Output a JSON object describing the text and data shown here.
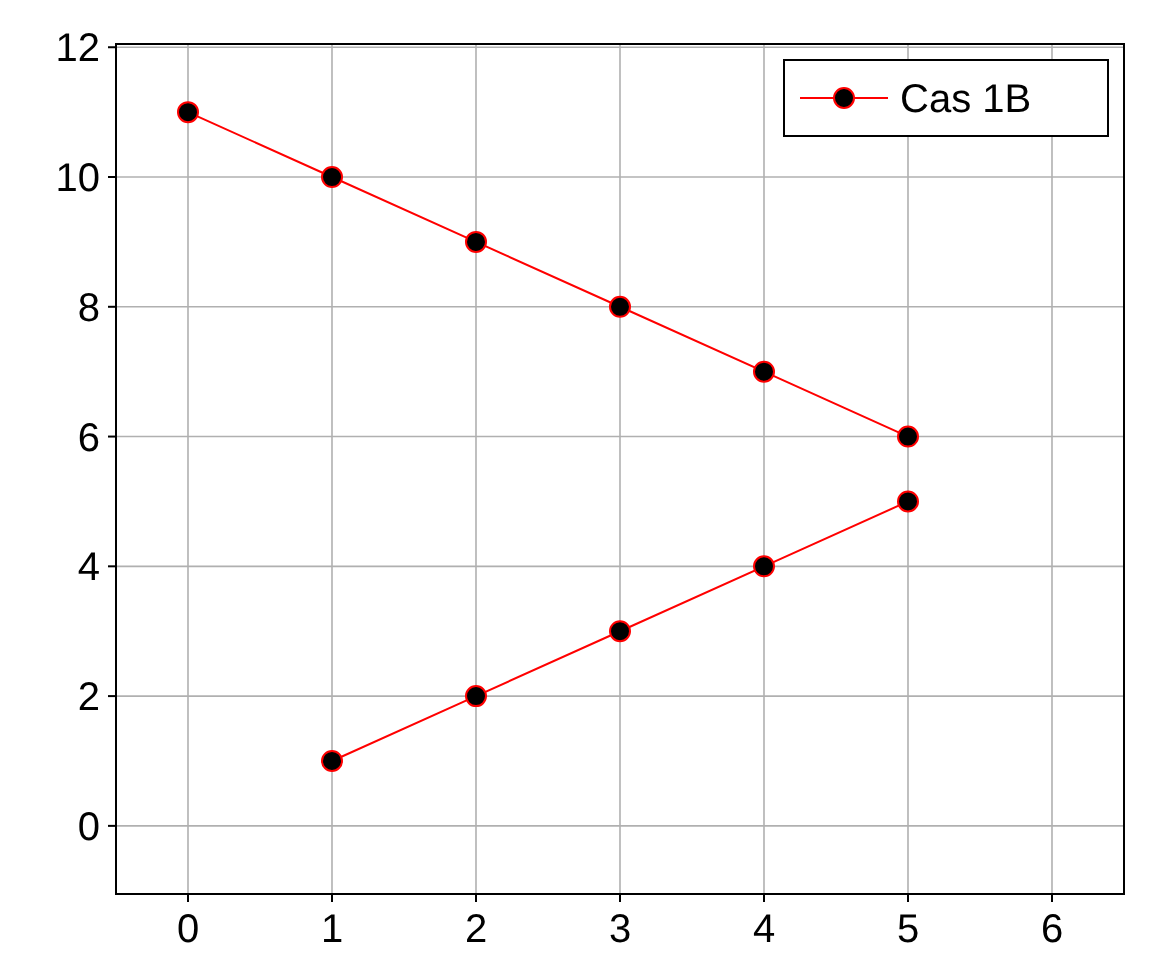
{
  "chart_data": {
    "type": "line",
    "x": [
      0,
      1,
      2,
      3,
      4,
      5
    ],
    "series": [
      {
        "name": "Cas 1B",
        "color": "#ff0000",
        "values": [
          11,
          10,
          9,
          8,
          7,
          6
        ]
      },
      {
        "color": "#ff0000",
        "x": [
          5,
          4,
          3,
          2,
          1
        ],
        "values": [
          5,
          4,
          3,
          2,
          1
        ]
      }
    ],
    "xlim": [
      -0.5,
      6.5
    ],
    "ylim": [
      -1.05,
      12.05
    ],
    "xticks": [
      0,
      1,
      2,
      3,
      4,
      5,
      6
    ],
    "yticks": [
      0,
      2,
      4,
      6,
      8,
      10,
      12
    ],
    "grid": true,
    "legend": "top right",
    "marker": "circle",
    "line_style": "solid"
  }
}
